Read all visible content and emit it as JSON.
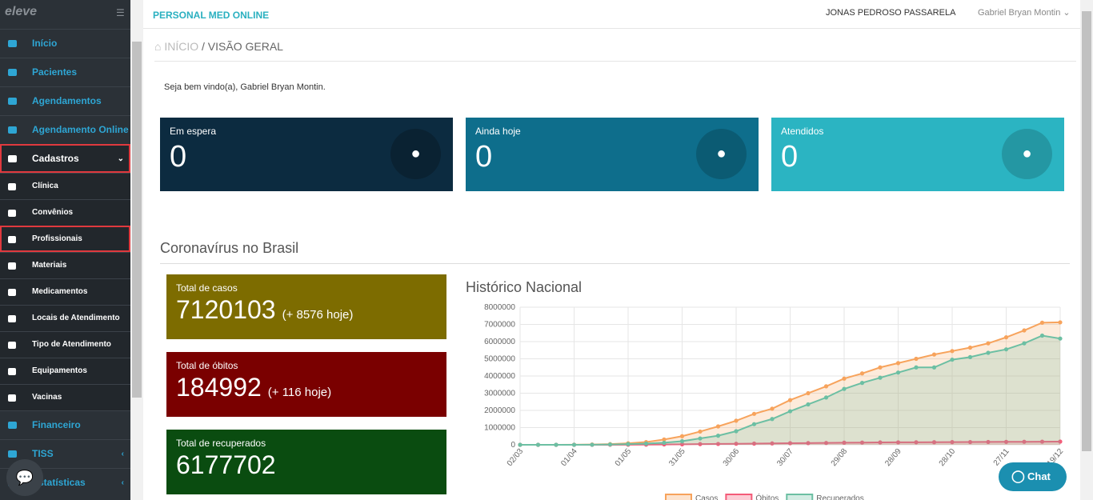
{
  "sidebar": {
    "logo": "eleve",
    "menu_top": [
      "Início",
      "Pacientes",
      "Agendamentos",
      "Agendamento Online",
      "Cadastros"
    ],
    "cadastros_submenu": [
      "Clínica",
      "Convênios",
      "Profissionais",
      "Materiais",
      "Medicamentos",
      "Locais de Atendimento",
      "Tipo de Atendimento",
      "Equipamentos",
      "Vacinas"
    ],
    "menu_bottom": [
      "Financeiro",
      "TISS",
      "Estatísticas"
    ]
  },
  "topbar": {
    "brand": "PERSONAL MED ONLINE",
    "company": "JONAS PEDROSO PASSARELA",
    "user": "Gabriel Bryan Montin"
  },
  "breadcrumb": [
    "INÍCIO",
    "/ VISÃO GERAL"
  ],
  "welcome": "Seja bem vindo(a), Gabriel Bryan Montin.",
  "cards": [
    {
      "label": "Em espera",
      "value": 0
    },
    {
      "label": "Ainda hoje",
      "value": 0
    },
    {
      "label": "Atendidos",
      "value": 0
    }
  ],
  "section_title": "Coronavírus no Brasil",
  "stats": [
    {
      "label": "Total de casos",
      "value": 7120103,
      "today": "(+ 8576 hoje)"
    },
    {
      "label": "Total de óbitos",
      "value": 184992,
      "today": "(+ 116 hoje)"
    },
    {
      "label": "Total de recuperados",
      "value": 6177702
    }
  ],
  "chat": "Chat",
  "chart_data": {
    "type": "line",
    "title": "Histórico Nacional",
    "categories": [
      "02/03",
      null,
      null,
      "01/04",
      null,
      null,
      "01/05",
      null,
      null,
      "31/05",
      null,
      null,
      "30/06",
      null,
      null,
      "30/07",
      null,
      null,
      "29/08",
      null,
      null,
      "28/09",
      null,
      null,
      "28/10",
      null,
      null,
      "27/11",
      null,
      null,
      "19/12"
    ],
    "series": [
      {
        "name": "Casos",
        "color": "#f7a35c",
        "values": [
          0,
          0,
          1000,
          6000,
          20000,
          40000,
          90000,
          160000,
          310000,
          500000,
          770000,
          1070000,
          1400000,
          1800000,
          2100000,
          2600000,
          3000000,
          3400000,
          3850000,
          4150000,
          4500000,
          4750000,
          5000000,
          5250000,
          5450000,
          5650000,
          5900000,
          6250000,
          6650000,
          7100000,
          7120103
        ]
      },
      {
        "name": "Óbitos",
        "color": "#f45b78",
        "values": [
          0,
          0,
          0,
          300,
          1200,
          2900,
          6000,
          11000,
          20000,
          30000,
          40000,
          50000,
          60000,
          70000,
          80000,
          92000,
          100000,
          108000,
          121000,
          130000,
          138000,
          143000,
          147000,
          152000,
          156000,
          160000,
          166000,
          172000,
          177000,
          183000,
          184992
        ]
      },
      {
        "name": "Recuperados",
        "color": "#6cbfa3",
        "values": [
          0,
          0,
          0,
          0,
          3000,
          20000,
          40000,
          70000,
          120000,
          210000,
          370000,
          530000,
          790000,
          1200000,
          1500000,
          1950000,
          2350000,
          2750000,
          3250000,
          3600000,
          3900000,
          4200000,
          4500000,
          4500000,
          4950000,
          5100000,
          5350000,
          5550000,
          5900000,
          6350000,
          6177702
        ]
      }
    ],
    "ylim": [
      0,
      8000000
    ],
    "yticks": [
      0,
      1000000,
      2000000,
      3000000,
      4000000,
      5000000,
      6000000,
      7000000,
      8000000
    ],
    "grid": true
  }
}
